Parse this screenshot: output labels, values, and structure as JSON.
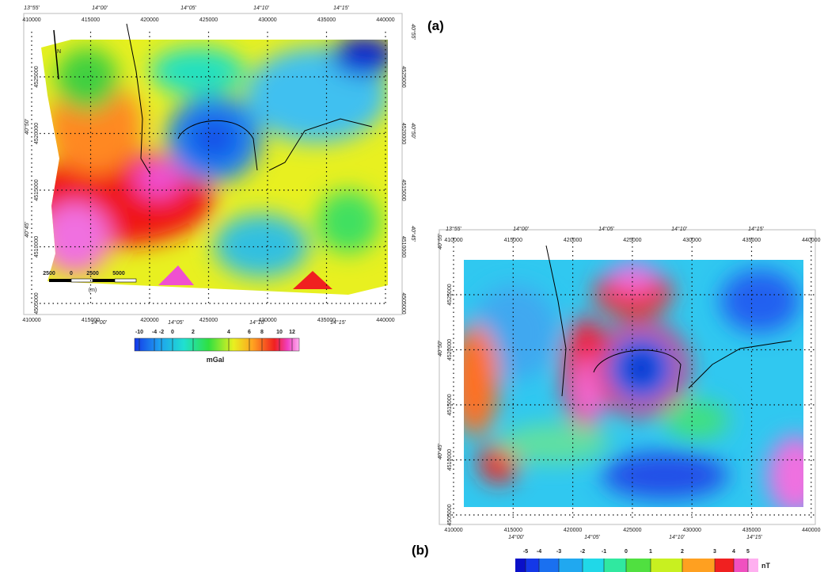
{
  "panel_a": {
    "label": "(a)",
    "north": "N",
    "top_lon": [
      "13°55'",
      "14°00'",
      "14°05'",
      "14°10'",
      "14°15'"
    ],
    "bottom_lon": [
      "14°00'",
      "14°05'",
      "14°10'",
      "14°15'"
    ],
    "left_lat": [
      "40°50'",
      "40°45'"
    ],
    "right_lat": [
      "40°55'",
      "40°50'",
      "40°45'"
    ],
    "x_ticks": [
      "410000",
      "415000",
      "420000",
      "425000",
      "430000",
      "435000",
      "440000"
    ],
    "y_ticks": [
      "4505000",
      "4510000",
      "4515000",
      "4520000",
      "4525000"
    ],
    "scale_bar": {
      "ticks": [
        "2500",
        "0",
        "2500",
        "5000"
      ],
      "unit": "(m)"
    },
    "colorbar": {
      "ticks": [
        "-10",
        "-4",
        "-2",
        "0",
        "2",
        "4",
        "6",
        "8",
        "10",
        "12"
      ],
      "unit": "mGal"
    }
  },
  "panel_b": {
    "label": "(b)",
    "top_lon": [
      "13°55'",
      "14°00'",
      "14°05'",
      "14°10'",
      "14°15'"
    ],
    "bottom_lon": [
      "14°00'",
      "14°05'",
      "14°10'",
      "14°15'"
    ],
    "left_lat": [
      "40°55'",
      "40°50'",
      "40°45'"
    ],
    "x_ticks": [
      "410000",
      "415000",
      "420000",
      "425000",
      "430000",
      "435000",
      "440000"
    ],
    "y_ticks": [
      "4505000",
      "4510000",
      "4515000",
      "4520000",
      "4525000"
    ],
    "colorbar": {
      "ticks": [
        "-5",
        "-4",
        "-3",
        "-2",
        "-1",
        "0",
        "1",
        "2",
        "3",
        "4",
        "5"
      ],
      "unit": "nT"
    }
  }
}
